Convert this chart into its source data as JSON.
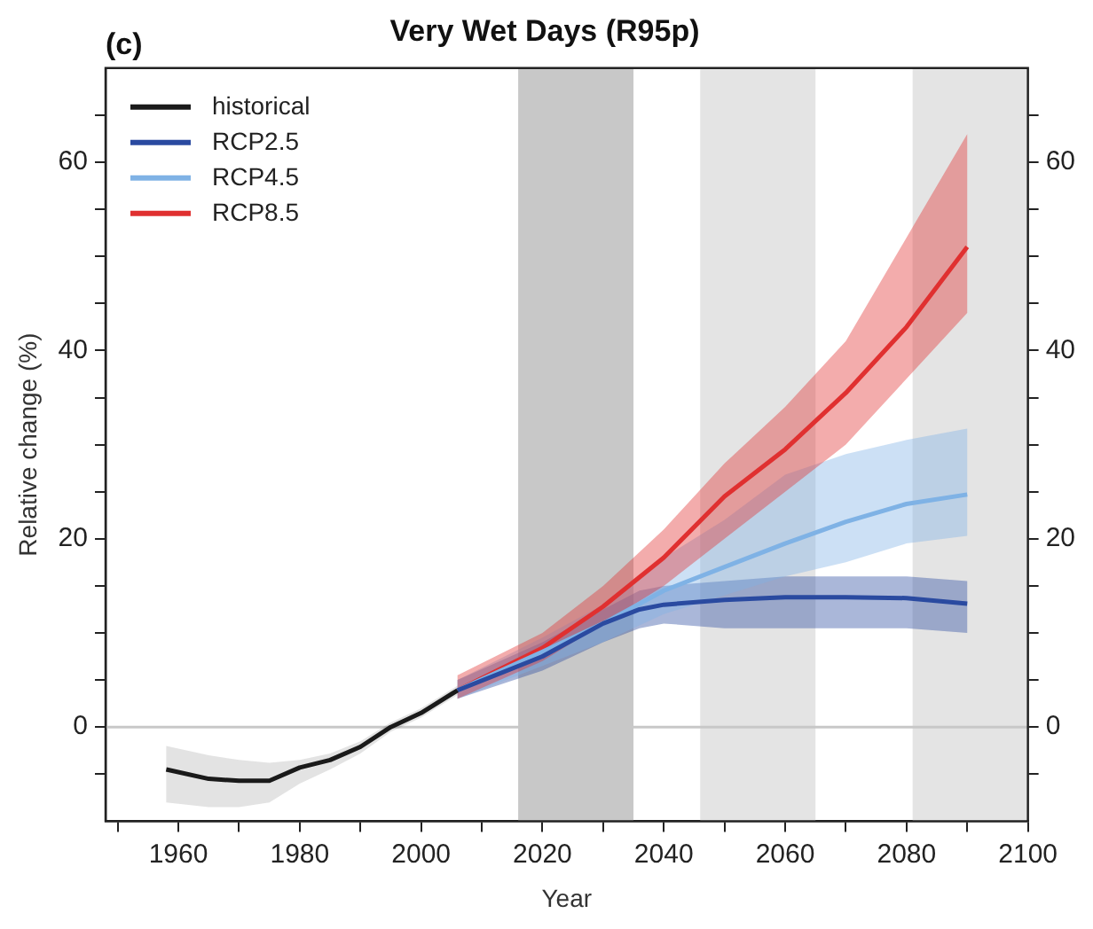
{
  "chart_data": {
    "type": "line",
    "title": "Very Wet Days (R95p)",
    "annotations": [
      "(c)"
    ],
    "xlabel": "Year",
    "ylabel": "Relative change (%)",
    "xlim": [
      1948,
      2100
    ],
    "xticks": [
      {
        "value": 1950,
        "label": null
      },
      1960,
      {
        "value": 1970,
        "label": null
      },
      1980,
      {
        "value": 1990,
        "label": null
      },
      2000,
      {
        "value": 2010,
        "label": null
      },
      2020,
      {
        "value": 2030,
        "label": null
      },
      2040,
      {
        "value": 2050,
        "label": null
      },
      2060,
      {
        "value": 2070,
        "label": null
      },
      2080,
      {
        "value": 2090,
        "label": null
      },
      2100
    ],
    "ylim": [
      -10,
      70
    ],
    "yticks": [
      {
        "value": -5,
        "label": null
      },
      0,
      {
        "value": 5,
        "label": null
      },
      {
        "value": 10,
        "label": null
      },
      {
        "value": 15,
        "label": null
      },
      20,
      {
        "value": 25,
        "label": null
      },
      {
        "value": 30,
        "label": null
      },
      {
        "value": 35,
        "label": null
      },
      40,
      {
        "value": 45,
        "label": null
      },
      {
        "value": 50,
        "label": null
      },
      {
        "value": 55,
        "label": null
      },
      60,
      {
        "value": 65,
        "label": null
      }
    ],
    "y2lim": [
      -10,
      70
    ],
    "y2ticks": [
      {
        "value": -5,
        "label": null
      },
      0,
      {
        "value": 5,
        "label": null
      },
      {
        "value": 10,
        "label": null
      },
      {
        "value": 15,
        "label": null
      },
      20,
      {
        "value": 25,
        "label": null
      },
      {
        "value": 30,
        "label": null
      },
      {
        "value": 35,
        "label": null
      },
      40,
      {
        "value": 45,
        "label": null
      },
      {
        "value": 50,
        "label": null
      },
      {
        "value": 55,
        "label": null
      },
      60,
      {
        "value": 65,
        "label": null
      }
    ],
    "grid": false,
    "legend": "top left",
    "bands": [
      {
        "axis": "x",
        "from": 2016,
        "to": 2035,
        "color": "#c8c8c8"
      },
      {
        "axis": "x",
        "from": 2046,
        "to": 2065,
        "color": "#e4e4e4"
      },
      {
        "axis": "x",
        "from": 2081,
        "to": 2100,
        "color": "#e4e4e4"
      }
    ],
    "ref_lines": [
      {
        "axis": "y",
        "value": 0,
        "color": "#c8c8c8"
      }
    ],
    "series": [
      {
        "name": "historical",
        "color": "#1a1a1a",
        "x": [
          1958,
          1965,
          1970,
          1975,
          1980,
          1985,
          1990,
          1995,
          2000,
          2006
        ],
        "values": [
          -4.5,
          -5.5,
          -5.7,
          -5.7,
          -4.3,
          -3.5,
          -2.1,
          0,
          1.5,
          3.9
        ],
        "lower": [
          -8,
          -8.5,
          -8.5,
          -8,
          -6,
          -4.5,
          -2.8,
          -0.5,
          1,
          3.4
        ],
        "upper": [
          -2,
          -3,
          -3.5,
          -3.8,
          -3.5,
          -2.8,
          -1.5,
          0.5,
          2,
          4.4
        ]
      },
      {
        "name": "RCP2.5",
        "color": "#2a4aa0",
        "x": [
          2006,
          2020,
          2030,
          2036,
          2040,
          2050,
          2060,
          2070,
          2080,
          2090
        ],
        "values": [
          3.9,
          7.5,
          11,
          12.5,
          13,
          13.5,
          13.8,
          13.8,
          13.7,
          13.1
        ],
        "lower": [
          3,
          6,
          9,
          10.5,
          11,
          10.5,
          10.5,
          10.5,
          10.5,
          10
        ],
        "upper": [
          5,
          9,
          12.5,
          14.5,
          15,
          15.5,
          16,
          16,
          16,
          15.5
        ]
      },
      {
        "name": "RCP4.5",
        "color": "#7fb2e5",
        "x": [
          2006,
          2020,
          2030,
          2040,
          2050,
          2060,
          2070,
          2080,
          2090
        ],
        "values": [
          3.9,
          8,
          11,
          14.5,
          17,
          19.5,
          21.8,
          23.7,
          24.7
        ],
        "lower": [
          3,
          6.5,
          9,
          12,
          14,
          16,
          17.5,
          19.5,
          20.3
        ],
        "upper": [
          5,
          9.5,
          13,
          18,
          22,
          26.8,
          29,
          30.5,
          31.7
        ]
      },
      {
        "name": "RCP8.5",
        "color": "#e03030",
        "x": [
          2006,
          2020,
          2030,
          2040,
          2050,
          2060,
          2070,
          2080,
          2090
        ],
        "values": [
          3.9,
          8.4,
          12.8,
          18,
          24.5,
          29.5,
          35.5,
          42.5,
          51
        ],
        "lower": [
          3,
          7,
          11,
          15,
          20,
          25,
          30,
          37,
          44
        ],
        "upper": [
          5.5,
          10,
          15,
          21,
          28,
          34,
          41,
          52,
          63
        ]
      }
    ]
  }
}
